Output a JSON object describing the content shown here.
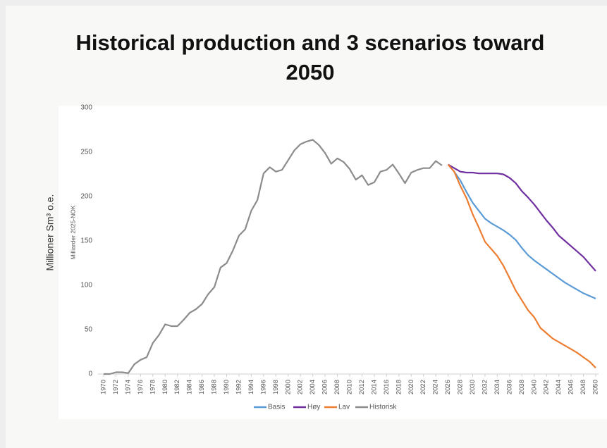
{
  "chart_data": {
    "type": "line",
    "title": "Historical production and 3 scenarios toward 2050",
    "ylabel": "Millioner Sm³ o.e.",
    "ylabel2": "Milliarder 2025-NOK",
    "xlim": [
      1970,
      2050
    ],
    "xticks": [
      1970,
      1972,
      1974,
      1976,
      1978,
      1980,
      1982,
      1984,
      1986,
      1988,
      1990,
      1992,
      1994,
      1996,
      1998,
      2000,
      2002,
      2004,
      2006,
      2008,
      2010,
      2012,
      2014,
      2016,
      2018,
      2020,
      2022,
      2024,
      2026,
      2028,
      2030,
      2032,
      2034,
      2036,
      2038,
      2040,
      2042,
      2044,
      2046,
      2048,
      2050
    ],
    "ylim": [
      0,
      300
    ],
    "yticks": [
      0,
      50,
      100,
      150,
      200,
      250,
      300
    ],
    "grid": false,
    "legend": "bottom",
    "series": [
      {
        "name": "Basis",
        "color": "#5b9bd5",
        "x": [
          2026,
          2027,
          2028,
          2029,
          2030,
          2031,
          2032,
          2033,
          2034,
          2035,
          2036,
          2037,
          2038,
          2039,
          2040,
          2041,
          2042,
          2043,
          2044,
          2045,
          2046,
          2047,
          2048,
          2049,
          2050
        ],
        "values": [
          236,
          228,
          218,
          205,
          193,
          184,
          175,
          170,
          166,
          162,
          157,
          151,
          142,
          134,
          128,
          123,
          118,
          113,
          108,
          103,
          99,
          95,
          91,
          88,
          85
        ]
      },
      {
        "name": "Høy",
        "color": "#7030a0",
        "x": [
          2026,
          2027,
          2028,
          2029,
          2030,
          2031,
          2032,
          2033,
          2034,
          2035,
          2036,
          2037,
          2038,
          2039,
          2040,
          2041,
          2042,
          2043,
          2044,
          2045,
          2046,
          2047,
          2048,
          2049,
          2050
        ],
        "values": [
          236,
          232,
          228,
          227,
          227,
          226,
          226,
          226,
          226,
          225,
          221,
          215,
          206,
          199,
          191,
          182,
          173,
          165,
          156,
          150,
          144,
          138,
          132,
          124,
          116
        ]
      },
      {
        "name": "Lav",
        "color": "#ed7d31",
        "x": [
          2026,
          2027,
          2028,
          2029,
          2030,
          2031,
          2032,
          2033,
          2034,
          2035,
          2036,
          2037,
          2038,
          2039,
          2040,
          2041,
          2042,
          2043,
          2044,
          2045,
          2046,
          2047,
          2048,
          2049,
          2050
        ],
        "values": [
          236,
          228,
          212,
          198,
          180,
          165,
          149,
          141,
          133,
          122,
          108,
          94,
          83,
          72,
          64,
          52,
          46,
          40,
          36,
          32,
          28,
          24,
          19,
          14,
          7
        ]
      },
      {
        "name": "Historisk",
        "color": "#8c8c8c",
        "x": [
          1970,
          1971,
          1972,
          1973,
          1974,
          1975,
          1976,
          1977,
          1978,
          1979,
          1980,
          1981,
          1982,
          1983,
          1984,
          1985,
          1986,
          1987,
          1988,
          1989,
          1990,
          1991,
          1992,
          1993,
          1994,
          1995,
          1996,
          1997,
          1998,
          1999,
          2000,
          2001,
          2002,
          2003,
          2004,
          2005,
          2006,
          2007,
          2008,
          2009,
          2010,
          2011,
          2012,
          2013,
          2014,
          2015,
          2016,
          2017,
          2018,
          2019,
          2020,
          2021,
          2022,
          2023,
          2024,
          2025
        ],
        "values": [
          0,
          0,
          2,
          2,
          1,
          11,
          16,
          19,
          35,
          44,
          56,
          54,
          54,
          61,
          69,
          73,
          79,
          90,
          98,
          120,
          125,
          139,
          156,
          163,
          184,
          196,
          226,
          233,
          228,
          230,
          241,
          252,
          259,
          262,
          264,
          258,
          249,
          237,
          243,
          239,
          231,
          219,
          224,
          213,
          216,
          228,
          230,
          236,
          226,
          215,
          227,
          230,
          232,
          232,
          240,
          235
        ]
      }
    ]
  }
}
